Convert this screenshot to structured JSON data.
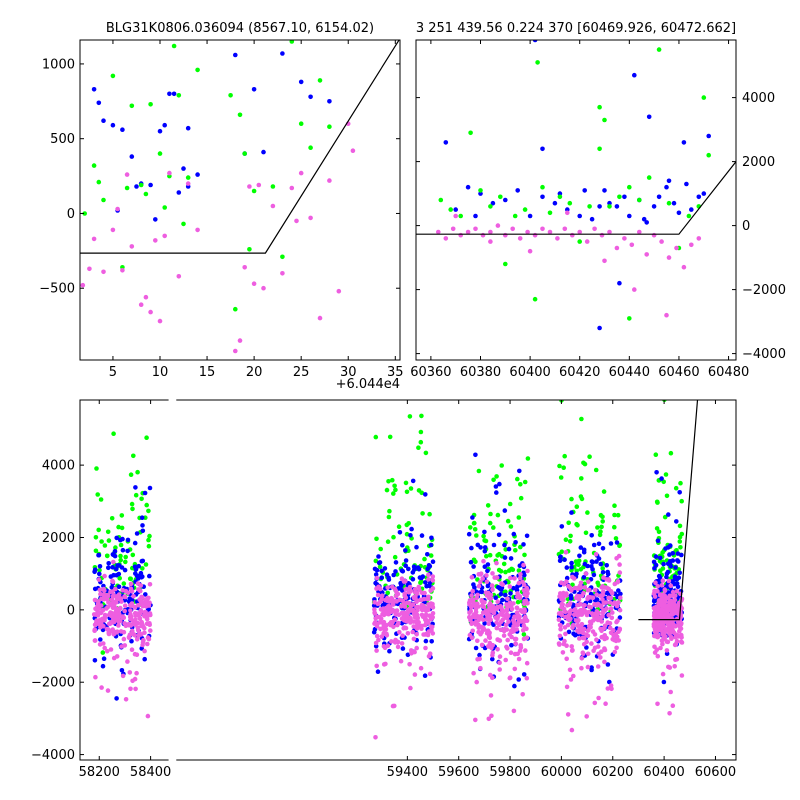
{
  "colors": {
    "blue": "#0000ff",
    "green": "#00ff00",
    "pink": "#ee5ee0",
    "line": "#000000"
  },
  "chart_data": [
    {
      "id": "top-left",
      "type": "scatter",
      "title": "BLG31K0806.036094 (8567.10, 6154.02)",
      "offset_label": "+6.044e4",
      "xlim": [
        1.5,
        35.5
      ],
      "ylim": [
        -980,
        1160
      ],
      "xticks": [
        5,
        10,
        15,
        20,
        25,
        30,
        35
      ],
      "xtick_labels": [
        "5",
        "10",
        "15",
        "20",
        "25",
        "30",
        "35"
      ],
      "yticks": [
        -500,
        0,
        500,
        1000
      ],
      "ytick_labels": [
        "−500",
        "0",
        "500",
        "1000"
      ],
      "ytick_side": "left",
      "line": {
        "x": [
          1.5,
          21.2,
          35.5
        ],
        "y": [
          -265,
          -265,
          1170
        ]
      },
      "series": [
        {
          "color": "blue",
          "x": [
            3,
            3.5,
            4,
            5,
            5.5,
            6,
            7,
            7.5,
            8,
            9,
            9.5,
            10,
            10.5,
            11,
            11.5,
            12,
            12.5,
            13,
            13,
            14,
            18,
            19,
            20,
            21,
            23,
            25,
            26,
            28
          ],
          "y": [
            830,
            740,
            620,
            590,
            20,
            560,
            380,
            180,
            200,
            190,
            -40,
            550,
            590,
            800,
            800,
            140,
            300,
            570,
            180,
            260,
            1060,
            400,
            830,
            410,
            1070,
            880,
            780,
            750
          ]
        },
        {
          "color": "green",
          "x": [
            2,
            3,
            3.5,
            4,
            5,
            6,
            6.5,
            7,
            8,
            8.5,
            9,
            10,
            10.5,
            11,
            11.5,
            12,
            12.5,
            13,
            14,
            17.5,
            18,
            18.5,
            19,
            19.5,
            20,
            22,
            23,
            24,
            25,
            26,
            27,
            28
          ],
          "y": [
            0,
            320,
            210,
            90,
            920,
            -360,
            170,
            720,
            190,
            130,
            730,
            400,
            40,
            250,
            1120,
            790,
            -70,
            240,
            960,
            790,
            -640,
            660,
            400,
            -240,
            150,
            180,
            -290,
            1150,
            600,
            440,
            890,
            580
          ]
        },
        {
          "color": "pink",
          "x": [
            1.8,
            2.5,
            3,
            4,
            5,
            5.5,
            6,
            6.5,
            7,
            8,
            8.5,
            9,
            9.5,
            10,
            10.5,
            11,
            12,
            13,
            14,
            18,
            18.5,
            19,
            19.5,
            20,
            20.5,
            21,
            22,
            23,
            24,
            24.5,
            25,
            26,
            27,
            28,
            29,
            30,
            30.5
          ],
          "y": [
            -480,
            -370,
            -170,
            -390,
            -110,
            30,
            -380,
            260,
            -220,
            -610,
            -560,
            -660,
            -180,
            -720,
            -150,
            270,
            -420,
            200,
            -110,
            -920,
            -850,
            -360,
            180,
            -470,
            190,
            -500,
            50,
            -400,
            170,
            -50,
            270,
            -30,
            -700,
            220,
            -520,
            600,
            420
          ]
        }
      ]
    },
    {
      "id": "top-right",
      "type": "scatter",
      "title": "3 251 439.56 0.224 370 [60469.926, 60472.662]",
      "xlim": [
        60354,
        60483
      ],
      "ylim": [
        -4200,
        5800
      ],
      "xticks": [
        60360,
        60380,
        60400,
        60420,
        60440,
        60460,
        60480
      ],
      "xtick_labels": [
        "60360",
        "60380",
        "60400",
        "60420",
        "60440",
        "60460",
        "60480"
      ],
      "yticks": [
        -4000,
        -2000,
        0,
        2000,
        4000
      ],
      "ytick_labels": [
        "−4000",
        "−2000",
        "0",
        "2000",
        "4000"
      ],
      "ytick_side": "right",
      "line": {
        "x": [
          60354,
          60460,
          60483
        ],
        "y": [
          -270,
          -270,
          2000
        ]
      },
      "series": [
        {
          "color": "blue",
          "x": [
            60366,
            60370,
            60375,
            60378,
            60380,
            60385,
            60390,
            60395,
            60400,
            60402,
            60405,
            60410,
            60412,
            60415,
            60420,
            60422,
            60425,
            60428,
            60430,
            60432,
            60435,
            60438,
            60440,
            60442,
            60444,
            60446,
            60448,
            60450,
            60452,
            60455,
            60458,
            60460,
            60462,
            60465,
            60468,
            60470,
            60472,
            60463,
            60456,
            60436,
            60428,
            60447,
            60405
          ],
          "y": [
            2600,
            500,
            1200,
            300,
            1000,
            700,
            800,
            1100,
            300,
            5800,
            900,
            700,
            1000,
            500,
            300,
            1100,
            200,
            -3200,
            1100,
            700,
            600,
            900,
            300,
            4700,
            800,
            200,
            3400,
            600,
            900,
            1200,
            700,
            400,
            2600,
            500,
            900,
            1000,
            2800,
            1300,
            1400,
            -1800,
            600,
            100,
            2400
          ]
        },
        {
          "color": "green",
          "x": [
            60364,
            60368,
            60372,
            60376,
            60380,
            60384,
            60388,
            60390,
            60394,
            60398,
            60402,
            60405,
            60408,
            60412,
            60416,
            60420,
            60424,
            60428,
            60430,
            60432,
            60436,
            60440,
            60444,
            60448,
            60452,
            60456,
            60460,
            60464,
            60468,
            60470,
            60472,
            60403,
            60428,
            60440
          ],
          "y": [
            800,
            500,
            300,
            2900,
            1100,
            600,
            900,
            -1200,
            300,
            500,
            -2300,
            1200,
            400,
            900,
            700,
            -500,
            600,
            3700,
            3300,
            600,
            900,
            1200,
            800,
            1500,
            5500,
            700,
            -700,
            300,
            600,
            4000,
            2200,
            5100,
            2400,
            -2900
          ]
        },
        {
          "color": "pink",
          "x": [
            60363,
            60366,
            60369,
            60372,
            60375,
            60378,
            60381,
            60384,
            60387,
            60390,
            60393,
            60396,
            60399,
            60402,
            60405,
            60408,
            60411,
            60414,
            60417,
            60420,
            60423,
            60426,
            60429,
            60432,
            60435,
            60438,
            60441,
            60444,
            60447,
            60450,
            60453,
            60456,
            60459,
            60462,
            60465,
            60468,
            60370,
            60384,
            60400,
            60415,
            60430,
            60442,
            60455,
            60446
          ],
          "y": [
            -200,
            -400,
            -100,
            -300,
            -200,
            -100,
            -300,
            -200,
            0,
            -300,
            -100,
            -400,
            -200,
            -300,
            -100,
            -200,
            -400,
            -100,
            -300,
            -200,
            -500,
            -100,
            -300,
            -200,
            -700,
            -400,
            -600,
            -200,
            -900,
            -300,
            -500,
            -1000,
            -700,
            -1300,
            -600,
            -400,
            300,
            -500,
            -800,
            400,
            -1100,
            -2000,
            -2800,
            6000
          ]
        }
      ]
    },
    {
      "id": "bottom",
      "type": "scatter",
      "xlim": [
        58125,
        60680
      ],
      "ylim": [
        -4150,
        5800
      ],
      "xticks": [
        58200,
        58400,
        59400,
        59600,
        59800,
        60000,
        60200,
        60400,
        60600
      ],
      "xtick_labels": [
        "58200",
        "58400",
        "59400",
        "59600",
        "59800",
        "60000",
        "60200",
        "60400",
        "60600"
      ],
      "yticks": [
        -4000,
        -2000,
        0,
        2000,
        4000
      ],
      "ytick_labels": [
        "−4000",
        "−2000",
        "0",
        "2000",
        "4000"
      ],
      "ytick_side": "left",
      "line": {
        "x": [
          60300,
          60460,
          60530
        ],
        "y": [
          -270,
          -270,
          5800
        ]
      },
      "seasons": [
        {
          "x": [
            58180,
            58400
          ],
          "center": 58300,
          "blue_spread": 1800,
          "green_spread": 3000,
          "pink_spread": 900
        },
        {
          "x": [
            59270,
            59500
          ],
          "center": 59400,
          "blue_spread": 1800,
          "green_spread": 3000,
          "pink_spread": 900
        },
        {
          "x": [
            59640,
            59870
          ],
          "center": 59760,
          "blue_spread": 2000,
          "green_spread": 3000,
          "pink_spread": 1100
        },
        {
          "x": [
            59990,
            60230
          ],
          "center": 60110,
          "blue_spread": 2000,
          "green_spread": 3000,
          "pink_spread": 1200
        },
        {
          "x": [
            60360,
            60470
          ],
          "center": 60440,
          "blue_spread": 1500,
          "green_spread": 2500,
          "pink_spread": 800
        }
      ]
    }
  ]
}
